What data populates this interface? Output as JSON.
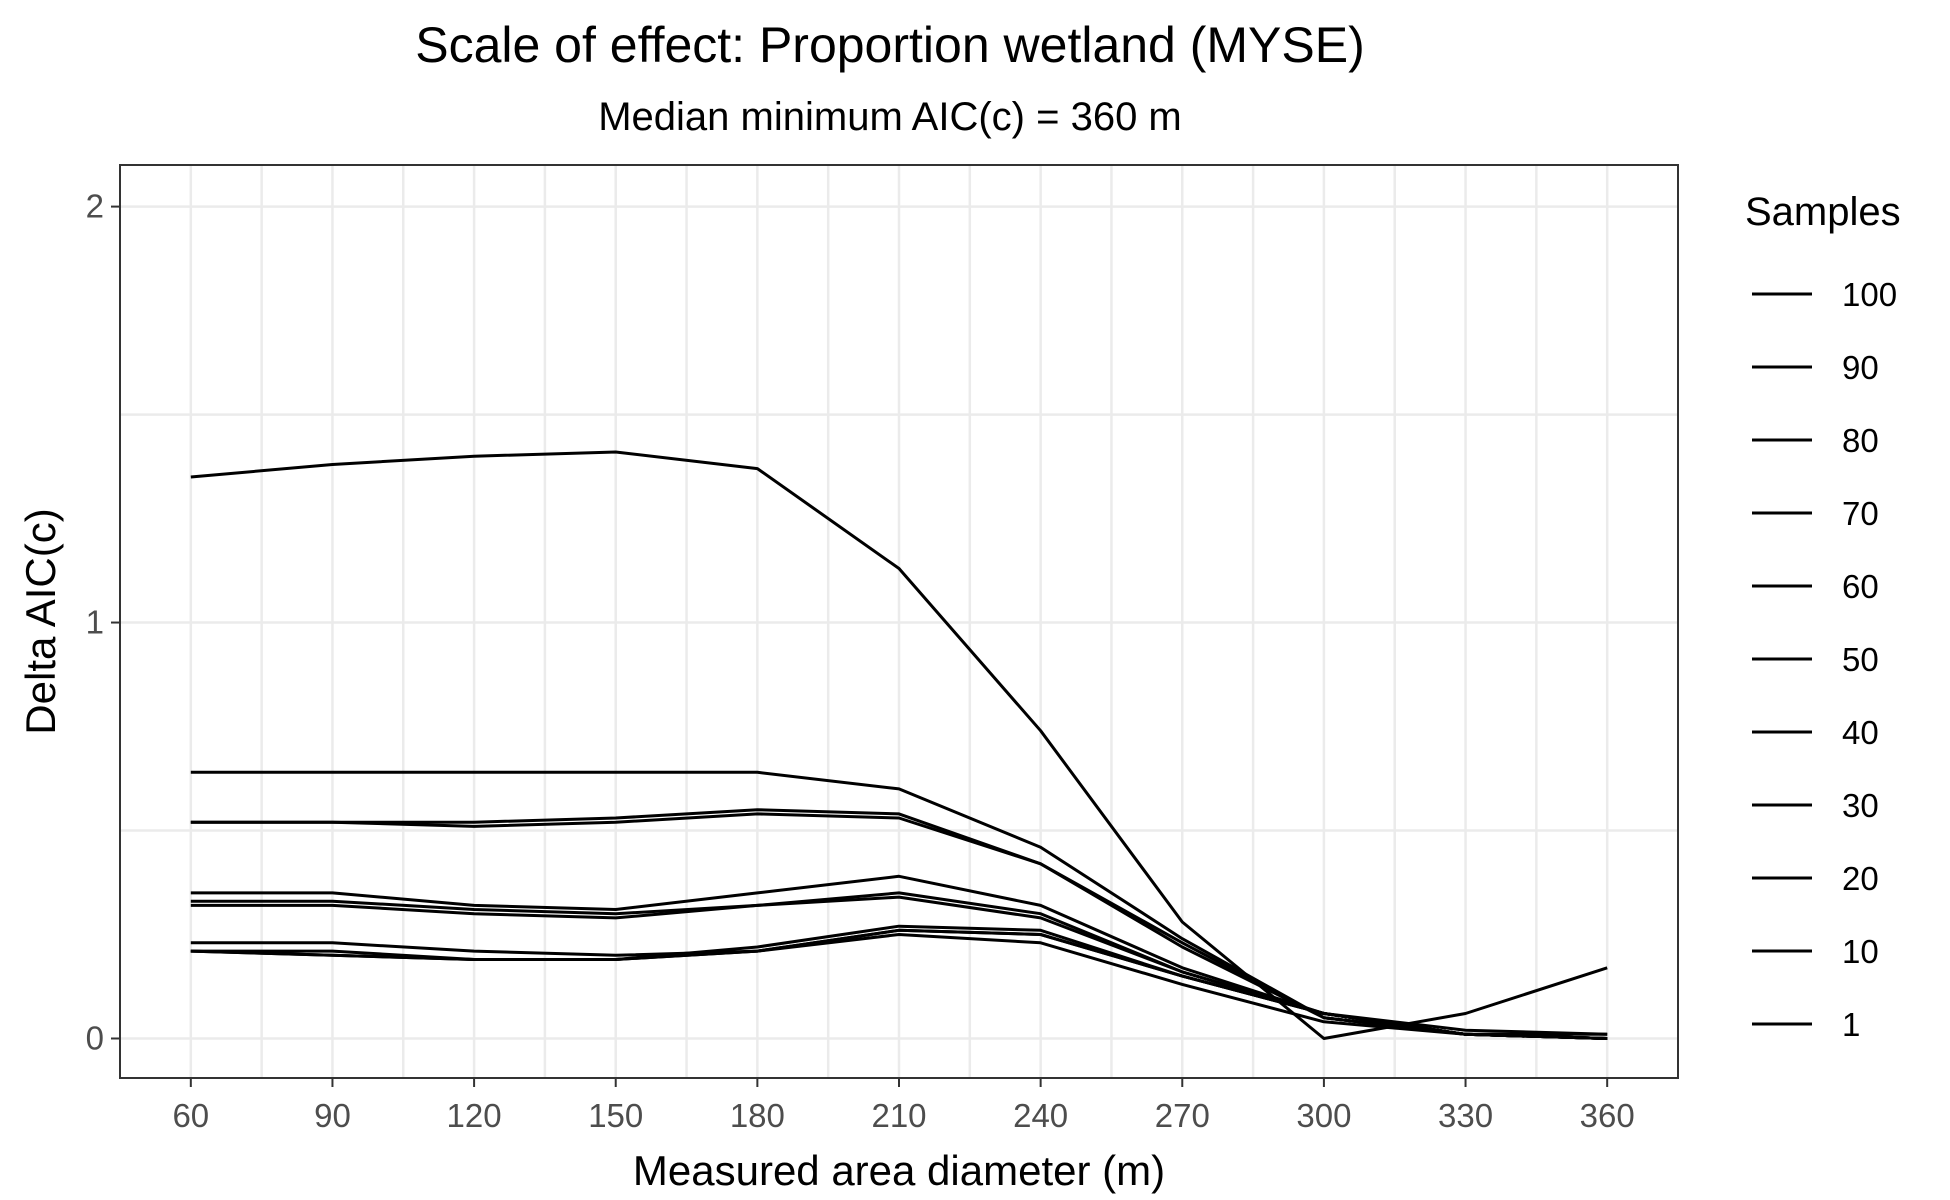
{
  "chart_data": {
    "type": "line",
    "title": "Scale of effect: Proportion wetland (MYSE)",
    "subtitle": "Median minimum AIC(c) = 360 m",
    "xlabel": "Measured area diameter (m)",
    "ylabel": "Delta AIC(c)",
    "x": [
      60,
      90,
      120,
      150,
      180,
      210,
      240,
      270,
      300,
      330,
      360
    ],
    "xlim": [
      45,
      375
    ],
    "ylim": [
      -0.095,
      2.1
    ],
    "yticks": [
      0,
      1,
      2
    ],
    "grid": true,
    "legend": {
      "title": "Samples",
      "position": "right"
    },
    "series": [
      {
        "name": "100",
        "values": [
          0.52,
          0.52,
          0.51,
          0.52,
          0.54,
          0.53,
          0.42,
          0.23,
          0.05,
          0.01,
          0.0
        ]
      },
      {
        "name": "90",
        "values": [
          0.21,
          0.2,
          0.19,
          0.19,
          0.21,
          0.26,
          0.25,
          0.15,
          0.06,
          0.01,
          0.0
        ]
      },
      {
        "name": "80",
        "values": [
          0.35,
          0.35,
          0.32,
          0.31,
          0.35,
          0.39,
          0.32,
          0.17,
          0.06,
          0.01,
          0.0
        ]
      },
      {
        "name": "70",
        "values": [
          0.32,
          0.32,
          0.3,
          0.29,
          0.32,
          0.35,
          0.3,
          0.16,
          0.06,
          0.01,
          0.0
        ]
      },
      {
        "name": "60",
        "values": [
          0.52,
          0.52,
          0.52,
          0.53,
          0.55,
          0.54,
          0.42,
          0.22,
          0.05,
          0.01,
          0.0
        ]
      },
      {
        "name": "50",
        "values": [
          0.23,
          0.23,
          0.21,
          0.2,
          0.21,
          0.26,
          0.25,
          0.15,
          0.06,
          0.02,
          0.01
        ]
      },
      {
        "name": "40",
        "values": [
          0.33,
          0.33,
          0.31,
          0.3,
          0.32,
          0.34,
          0.29,
          0.16,
          0.06,
          0.01,
          0.0
        ]
      },
      {
        "name": "30",
        "values": [
          0.64,
          0.64,
          0.64,
          0.64,
          0.64,
          0.6,
          0.46,
          0.24,
          0.05,
          0.01,
          0.0
        ]
      },
      {
        "name": "20",
        "values": [
          0.21,
          0.2,
          0.19,
          0.19,
          0.22,
          0.27,
          0.26,
          0.15,
          0.06,
          0.01,
          0.01
        ]
      },
      {
        "name": "10",
        "values": [
          0.21,
          0.21,
          0.19,
          0.19,
          0.21,
          0.25,
          0.23,
          0.13,
          0.04,
          0.01,
          0.0
        ]
      },
      {
        "name": "1",
        "values": [
          1.35,
          1.38,
          1.4,
          1.41,
          1.37,
          1.13,
          0.74,
          0.28,
          0.0,
          0.06,
          0.17
        ]
      }
    ]
  }
}
